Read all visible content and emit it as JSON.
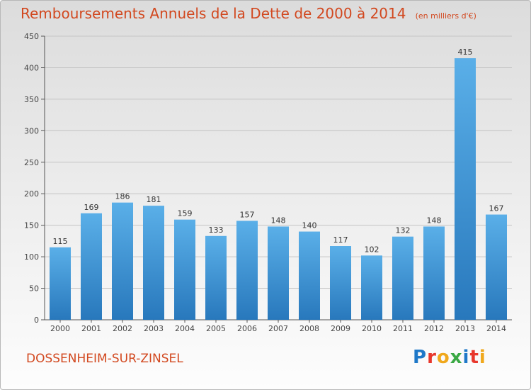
{
  "chart_data": {
    "type": "bar",
    "title": "Remboursements Annuels de la Dette de 2000 à 2014",
    "unit_note": "(en milliers d'€)",
    "categories": [
      "2000",
      "2001",
      "2002",
      "2003",
      "2004",
      "2005",
      "2006",
      "2007",
      "2008",
      "2009",
      "2010",
      "2011",
      "2012",
      "2013",
      "2014"
    ],
    "values": [
      115,
      169,
      186,
      181,
      159,
      133,
      157,
      148,
      140,
      117,
      102,
      132,
      148,
      415,
      167
    ],
    "ylim": [
      0,
      450
    ],
    "yticks": [
      0,
      50,
      100,
      150,
      200,
      250,
      300,
      350,
      400,
      450
    ],
    "xlabel": "",
    "ylabel": "",
    "grid": true,
    "bar_color": "#4a9fe0"
  },
  "commune": "DOSSENHEIM-SUR-ZINSEL",
  "logo": {
    "letters": [
      "P",
      "r",
      "o",
      "x",
      "i",
      "t",
      "i"
    ],
    "text": "Proxiti"
  }
}
